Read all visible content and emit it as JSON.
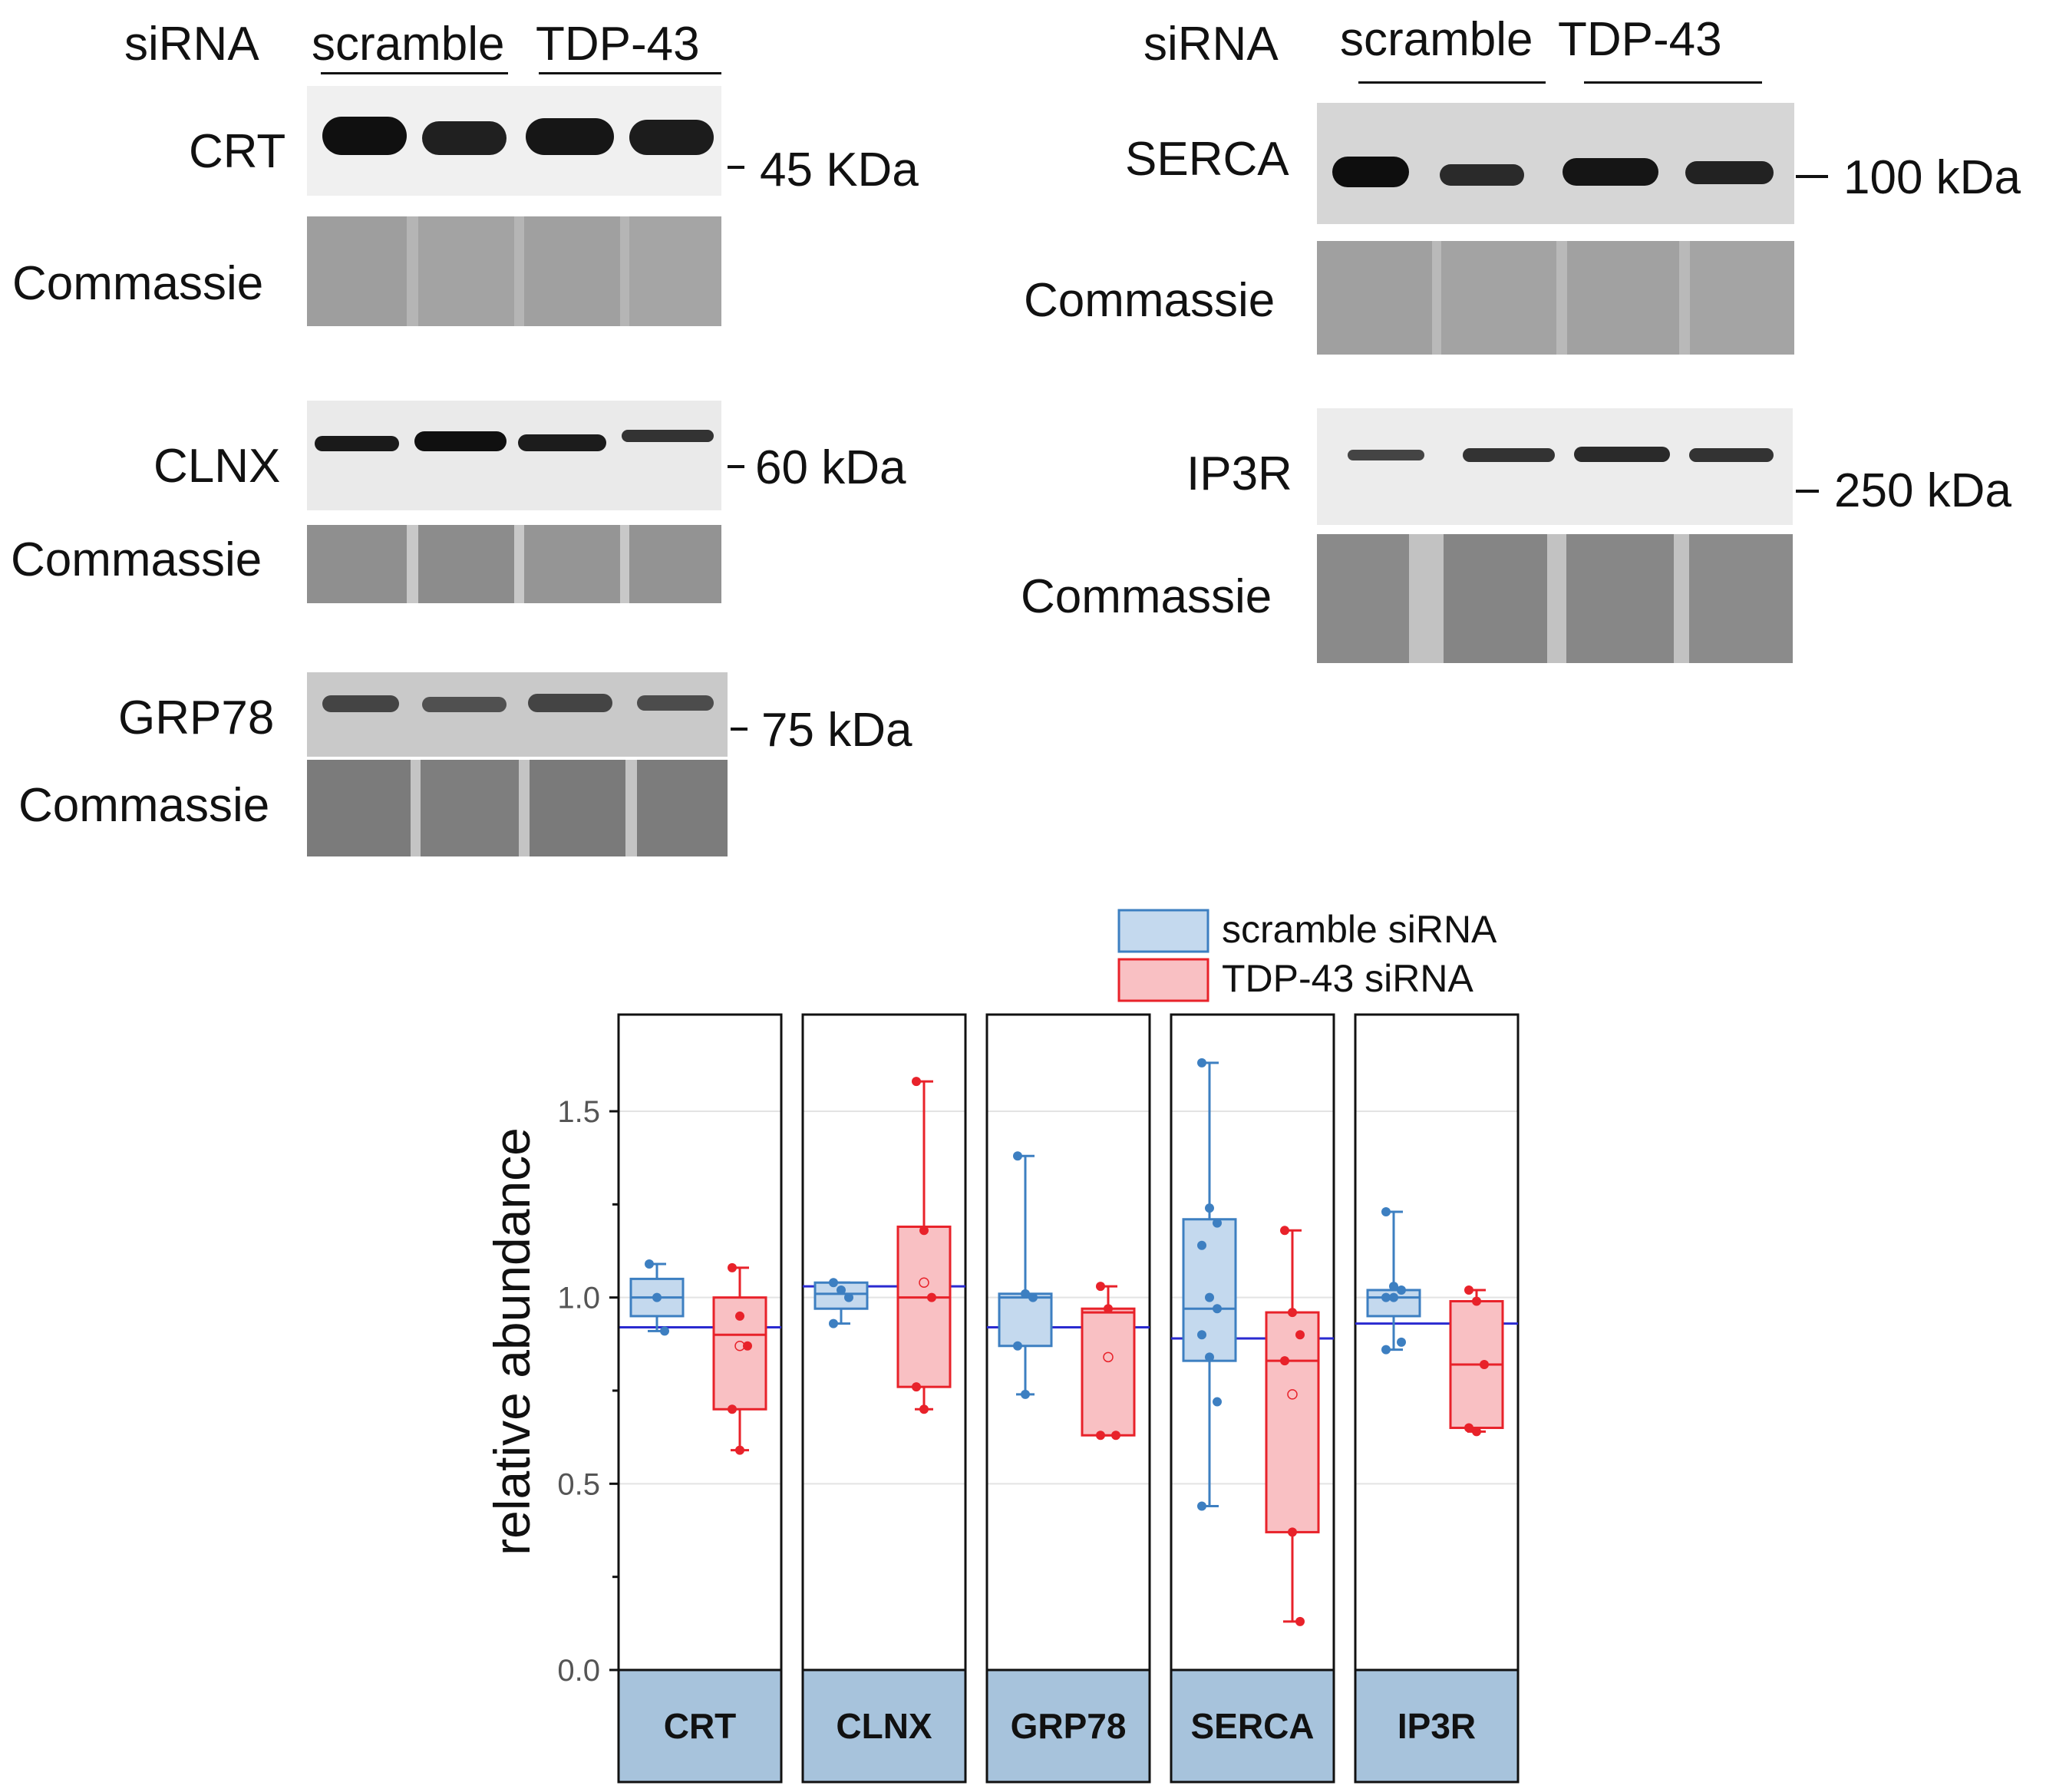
{
  "left_panel": {
    "header": {
      "siRNA": "siRNA",
      "scramble": "scramble",
      "tdp43": "TDP-43"
    },
    "rows": [
      {
        "protein": "CRT",
        "control": "Commassie",
        "marker": "45 KDa"
      },
      {
        "protein": "CLNX",
        "control": "Commassie",
        "marker": "60 kDa"
      },
      {
        "protein": "GRP78",
        "control": "Commassie",
        "marker": "75 kDa"
      }
    ]
  },
  "right_panel": {
    "header": {
      "siRNA": "siRNA",
      "scramble": "scramble",
      "tdp43": "TDP-43"
    },
    "rows": [
      {
        "protein": "SERCA",
        "control": "Commassie",
        "marker": "100 kDa"
      },
      {
        "protein": "IP3R",
        "control": "Commassie",
        "marker": "250 kDa"
      }
    ]
  },
  "chart_data": {
    "type": "box",
    "ylabel": "relative abundance",
    "ylim": [
      0,
      1.75
    ],
    "yticks": [
      "0.0",
      "0.5",
      "1.0",
      "1.5"
    ],
    "legend": {
      "placement": "top-right",
      "entries": [
        "scramble siRNA",
        "TDP-43 siRNA"
      ]
    },
    "colors": {
      "scramble": "#3d7fc1",
      "scramble_fill": "#c4d9ee",
      "tdp43": "#e8222a",
      "tdp43_fill": "#f9c0c3",
      "mean_line": "#2a2ad0",
      "strip": "#a7c3dc"
    },
    "categories": [
      "CRT",
      "CLNX",
      "GRP78",
      "SERCA",
      "IP3R"
    ],
    "series": [
      {
        "name": "scramble siRNA",
        "boxes": [
          {
            "whisker_low": 0.91,
            "q1": 0.95,
            "median": 1.0,
            "q3": 1.05,
            "whisker_high": 1.09,
            "points": [
              1.09,
              1.0,
              0.91
            ]
          },
          {
            "whisker_low": 0.93,
            "q1": 0.97,
            "median": 1.01,
            "q3": 1.04,
            "whisker_high": 1.04,
            "points": [
              1.04,
              1.02,
              1.0,
              0.93
            ]
          },
          {
            "whisker_low": 0.74,
            "q1": 0.87,
            "median": 1.0,
            "q3": 1.01,
            "whisker_high": 1.38,
            "points": [
              1.38,
              1.01,
              1.0,
              0.87,
              0.74
            ]
          },
          {
            "whisker_low": 0.44,
            "q1": 0.83,
            "median": 0.97,
            "q3": 1.21,
            "whisker_high": 1.63,
            "points": [
              1.63,
              1.24,
              1.2,
              1.14,
              1.0,
              0.97,
              0.9,
              0.84,
              0.72,
              0.44
            ]
          },
          {
            "whisker_low": 0.86,
            "q1": 0.95,
            "median": 1.0,
            "q3": 1.02,
            "whisker_high": 1.23,
            "points": [
              1.23,
              1.03,
              1.02,
              1.0,
              1.0,
              0.88,
              0.86
            ]
          }
        ]
      },
      {
        "name": "TDP-43 siRNA",
        "boxes": [
          {
            "whisker_low": 0.59,
            "q1": 0.7,
            "median": 0.9,
            "q3": 1.0,
            "whisker_high": 1.08,
            "points": [
              1.08,
              0.95,
              0.87,
              0.7,
              0.59
            ],
            "mean": 0.87
          },
          {
            "whisker_low": 0.7,
            "q1": 0.76,
            "median": 1.0,
            "q3": 1.19,
            "whisker_high": 1.58,
            "points": [
              1.58,
              1.18,
              1.0,
              0.76,
              0.7
            ],
            "mean": 1.04
          },
          {
            "whisker_low": 0.63,
            "q1": 0.63,
            "median": 0.96,
            "q3": 0.97,
            "whisker_high": 1.03,
            "points": [
              1.03,
              0.97,
              0.63,
              0.63
            ],
            "mean": 0.84
          },
          {
            "whisker_low": 0.13,
            "q1": 0.37,
            "median": 0.83,
            "q3": 0.96,
            "whisker_high": 1.18,
            "points": [
              1.18,
              0.96,
              0.9,
              0.83,
              0.37,
              0.13
            ],
            "mean": 0.74
          },
          {
            "whisker_low": 0.64,
            "q1": 0.65,
            "median": 0.82,
            "q3": 0.99,
            "whisker_high": 1.02,
            "points": [
              1.02,
              0.99,
              0.82,
              0.65,
              0.64
            ]
          }
        ]
      }
    ],
    "reference_lines": [
      0.92,
      1.03,
      0.92,
      0.89,
      0.93
    ]
  }
}
